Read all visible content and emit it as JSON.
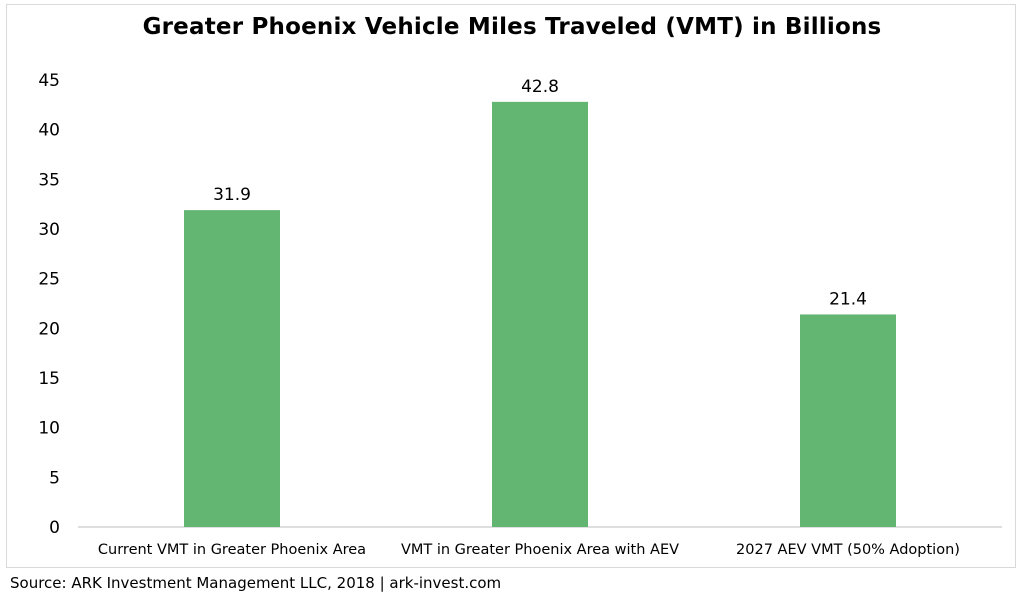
{
  "chart_data": {
    "type": "bar",
    "title": "Greater Phoenix Vehicle Miles Traveled (VMT) in Billions",
    "categories": [
      "Current VMT in Greater Phoenix Area",
      "VMT in Greater Phoenix Area with AEV",
      "2027 AEV VMT (50% Adoption)"
    ],
    "values": [
      31.9,
      42.8,
      21.4
    ],
    "data_labels": [
      "31.9",
      "42.8",
      "21.4"
    ],
    "yticks": [
      0,
      5,
      10,
      15,
      20,
      25,
      30,
      35,
      40,
      45
    ],
    "ylim": [
      0,
      45
    ],
    "xlabel": "",
    "ylabel": "",
    "grid": false,
    "bar_color": "#63b572"
  },
  "source": "Source: ARK Investment Management LLC, 2018 | ark-invest.com"
}
